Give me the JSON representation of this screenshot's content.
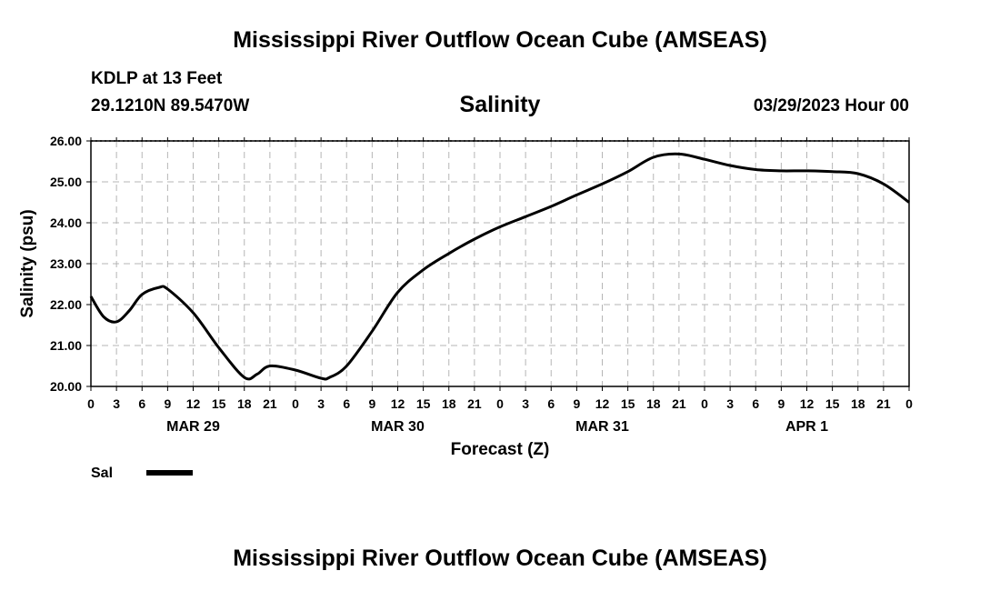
{
  "header": {
    "title": "Mississippi River Outflow Ocean Cube (AMSEAS)",
    "station": "KDLP at 13 Feet",
    "coords": "29.1210N  89.5470W",
    "variable": "Salinity",
    "date": "03/29/2023 Hour 00"
  },
  "footer": {
    "title": "Mississippi River Outflow Ocean Cube (AMSEAS)"
  },
  "legend": {
    "label": "Sal"
  },
  "chart_data": {
    "type": "line",
    "title": "Salinity",
    "xlabel": "Forecast (Z)",
    "ylabel": "Salinity (psu)",
    "ylim": [
      20.0,
      26.0
    ],
    "yticks": [
      "20.00",
      "21.00",
      "22.00",
      "23.00",
      "24.00",
      "25.00",
      "26.00"
    ],
    "xlim": [
      0,
      96
    ],
    "xtick_labels": [
      "0",
      "3",
      "6",
      "9",
      "12",
      "15",
      "18",
      "21",
      "0",
      "3",
      "6",
      "9",
      "12",
      "15",
      "18",
      "21",
      "0",
      "3",
      "6",
      "9",
      "12",
      "15",
      "18",
      "21",
      "0",
      "3",
      "6",
      "9",
      "12",
      "15",
      "18",
      "21",
      "0"
    ],
    "day_labels": [
      {
        "label": "MAR 29",
        "hour": 12
      },
      {
        "label": "MAR 30",
        "hour": 36
      },
      {
        "label": "MAR 31",
        "hour": 60
      },
      {
        "label": "APR 1",
        "hour": 84
      }
    ],
    "grid": true,
    "series": [
      {
        "name": "Sal",
        "color": "#000000",
        "x": [
          0,
          1.5,
          3,
          4.5,
          6,
          8,
          9,
          12,
          15,
          18,
          19.5,
          21,
          24,
          27,
          28,
          30,
          33,
          36,
          39,
          42,
          45,
          48,
          51,
          54,
          57,
          60,
          63,
          66,
          69,
          72,
          75,
          78,
          81,
          84,
          87,
          90,
          93,
          96
        ],
        "y": [
          22.2,
          21.7,
          21.58,
          21.85,
          22.25,
          22.42,
          22.38,
          21.8,
          20.95,
          20.22,
          20.3,
          20.5,
          20.4,
          20.2,
          20.22,
          20.5,
          21.35,
          22.3,
          22.85,
          23.25,
          23.6,
          23.9,
          24.15,
          24.4,
          24.68,
          24.95,
          25.25,
          25.6,
          25.68,
          25.55,
          25.4,
          25.3,
          25.27,
          25.27,
          25.25,
          25.2,
          24.95,
          24.5
        ]
      }
    ]
  }
}
